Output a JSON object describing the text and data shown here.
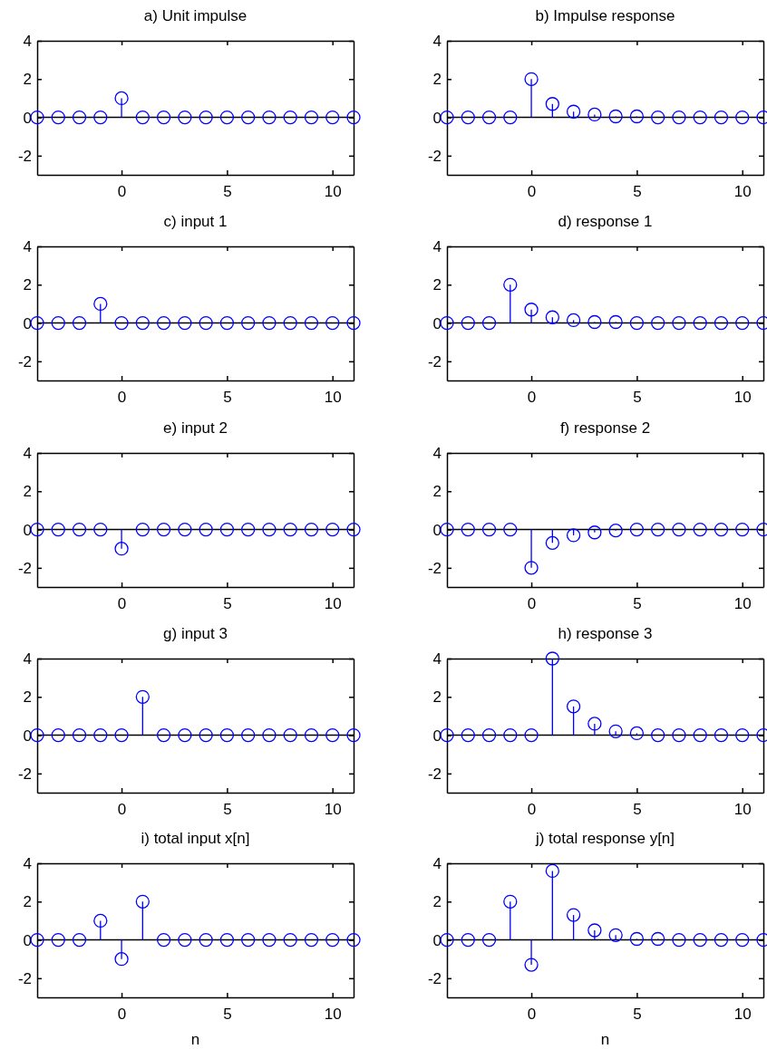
{
  "chart_data": [
    {
      "type": "lollipop",
      "title": "a) Unit impulse",
      "x": [
        -4,
        -3,
        -2,
        -1,
        0,
        1,
        2,
        3,
        4,
        5,
        6,
        7,
        8,
        9,
        10,
        11
      ],
      "series": [
        {
          "color": "#0000ff",
          "values": [
            0,
            0,
            0,
            0,
            1,
            0,
            0,
            0,
            0,
            0,
            0,
            0,
            0,
            0,
            0,
            0
          ]
        }
      ],
      "xlim": [
        -4,
        11
      ],
      "ylim": [
        -3,
        4
      ],
      "xticks": [
        0,
        5,
        10
      ],
      "yticks": [
        -2,
        0,
        2,
        4
      ],
      "marker": "circle",
      "ref_lines": [
        {
          "axis": "y",
          "value": 0,
          "color": "#000000"
        }
      ]
    },
    {
      "type": "lollipop",
      "title": "b) Impulse response",
      "x": [
        -4,
        -3,
        -2,
        -1,
        0,
        1,
        2,
        3,
        4,
        5,
        6,
        7,
        8,
        9,
        10,
        11
      ],
      "series": [
        {
          "color": "#0000ff",
          "values": [
            0,
            0,
            0,
            0,
            2,
            0.7,
            0.3,
            0.15,
            0.05,
            0.05,
            0,
            0,
            0,
            0,
            0,
            0
          ]
        }
      ],
      "xlim": [
        -4,
        11
      ],
      "ylim": [
        -3,
        4
      ],
      "xticks": [
        0,
        5,
        10
      ],
      "yticks": [
        -2,
        0,
        2,
        4
      ],
      "marker": "circle",
      "ref_lines": [
        {
          "axis": "y",
          "value": 0,
          "color": "#000000"
        }
      ]
    },
    {
      "type": "lollipop",
      "title": "c) input 1",
      "x": [
        -4,
        -3,
        -2,
        -1,
        0,
        1,
        2,
        3,
        4,
        5,
        6,
        7,
        8,
        9,
        10,
        11
      ],
      "series": [
        {
          "color": "#0000ff",
          "values": [
            0,
            0,
            0,
            1,
            0,
            0,
            0,
            0,
            0,
            0,
            0,
            0,
            0,
            0,
            0,
            0
          ]
        }
      ],
      "xlim": [
        -4,
        11
      ],
      "ylim": [
        -3,
        4
      ],
      "xticks": [
        0,
        5,
        10
      ],
      "yticks": [
        -2,
        0,
        2,
        4
      ],
      "marker": "circle",
      "ref_lines": [
        {
          "axis": "y",
          "value": 0,
          "color": "#000000"
        }
      ]
    },
    {
      "type": "lollipop",
      "title": "d) response 1",
      "x": [
        -4,
        -3,
        -2,
        -1,
        0,
        1,
        2,
        3,
        4,
        5,
        6,
        7,
        8,
        9,
        10,
        11
      ],
      "series": [
        {
          "color": "#0000ff",
          "values": [
            0,
            0,
            0,
            2,
            0.7,
            0.3,
            0.15,
            0.05,
            0.05,
            0,
            0,
            0,
            0,
            0,
            0,
            0
          ]
        }
      ],
      "xlim": [
        -4,
        11
      ],
      "ylim": [
        -3,
        4
      ],
      "xticks": [
        0,
        5,
        10
      ],
      "yticks": [
        -2,
        0,
        2,
        4
      ],
      "marker": "circle",
      "ref_lines": [
        {
          "axis": "y",
          "value": 0,
          "color": "#000000"
        }
      ]
    },
    {
      "type": "lollipop",
      "title": "e) input 2",
      "x": [
        -4,
        -3,
        -2,
        -1,
        0,
        1,
        2,
        3,
        4,
        5,
        6,
        7,
        8,
        9,
        10,
        11
      ],
      "series": [
        {
          "color": "#0000ff",
          "values": [
            0,
            0,
            0,
            0,
            -1,
            0,
            0,
            0,
            0,
            0,
            0,
            0,
            0,
            0,
            0,
            0
          ]
        }
      ],
      "xlim": [
        -4,
        11
      ],
      "ylim": [
        -3,
        4
      ],
      "xticks": [
        0,
        5,
        10
      ],
      "yticks": [
        -2,
        0,
        2,
        4
      ],
      "marker": "circle",
      "ref_lines": [
        {
          "axis": "y",
          "value": 0,
          "color": "#000000"
        }
      ]
    },
    {
      "type": "lollipop",
      "title": "f) response 2",
      "x": [
        -4,
        -3,
        -2,
        -1,
        0,
        1,
        2,
        3,
        4,
        5,
        6,
        7,
        8,
        9,
        10,
        11
      ],
      "series": [
        {
          "color": "#0000ff",
          "values": [
            0,
            0,
            0,
            0,
            -2,
            -0.7,
            -0.3,
            -0.15,
            -0.05,
            0,
            0,
            0,
            0,
            0,
            0,
            0
          ]
        }
      ],
      "xlim": [
        -4,
        11
      ],
      "ylim": [
        -3,
        4
      ],
      "xticks": [
        0,
        5,
        10
      ],
      "yticks": [
        -2,
        0,
        2,
        4
      ],
      "marker": "circle",
      "ref_lines": [
        {
          "axis": "y",
          "value": 0,
          "color": "#000000"
        }
      ]
    },
    {
      "type": "lollipop",
      "title": "g) input 3",
      "x": [
        -4,
        -3,
        -2,
        -1,
        0,
        1,
        2,
        3,
        4,
        5,
        6,
        7,
        8,
        9,
        10,
        11
      ],
      "series": [
        {
          "color": "#0000ff",
          "values": [
            0,
            0,
            0,
            0,
            0,
            2,
            0,
            0,
            0,
            0,
            0,
            0,
            0,
            0,
            0,
            0
          ]
        }
      ],
      "xlim": [
        -4,
        11
      ],
      "ylim": [
        -3,
        4
      ],
      "xticks": [
        0,
        5,
        10
      ],
      "yticks": [
        -2,
        0,
        2,
        4
      ],
      "marker": "circle",
      "ref_lines": [
        {
          "axis": "y",
          "value": 0,
          "color": "#000000"
        }
      ]
    },
    {
      "type": "lollipop",
      "title": "h) response 3",
      "x": [
        -4,
        -3,
        -2,
        -1,
        0,
        1,
        2,
        3,
        4,
        5,
        6,
        7,
        8,
        9,
        10,
        11
      ],
      "series": [
        {
          "color": "#0000ff",
          "values": [
            0,
            0,
            0,
            0,
            0,
            4,
            1.5,
            0.6,
            0.2,
            0.1,
            0,
            0,
            0,
            0,
            0,
            0
          ]
        }
      ],
      "xlim": [
        -4,
        11
      ],
      "ylim": [
        -3,
        4
      ],
      "xticks": [
        0,
        5,
        10
      ],
      "yticks": [
        -2,
        0,
        2,
        4
      ],
      "marker": "circle",
      "ref_lines": [
        {
          "axis": "y",
          "value": 0,
          "color": "#000000"
        }
      ]
    },
    {
      "type": "lollipop",
      "title": "i) total input x[n]",
      "xlabel": "n",
      "x": [
        -4,
        -3,
        -2,
        -1,
        0,
        1,
        2,
        3,
        4,
        5,
        6,
        7,
        8,
        9,
        10,
        11
      ],
      "series": [
        {
          "color": "#0000ff",
          "values": [
            0,
            0,
            0,
            1,
            -1,
            2,
            0,
            0,
            0,
            0,
            0,
            0,
            0,
            0,
            0,
            0
          ]
        }
      ],
      "xlim": [
        -4,
        11
      ],
      "ylim": [
        -3,
        4
      ],
      "xticks": [
        0,
        5,
        10
      ],
      "yticks": [
        -2,
        0,
        2,
        4
      ],
      "marker": "circle",
      "ref_lines": [
        {
          "axis": "y",
          "value": 0,
          "color": "#000000"
        }
      ]
    },
    {
      "type": "lollipop",
      "title": "j) total response y[n]",
      "xlabel": "n",
      "x": [
        -4,
        -3,
        -2,
        -1,
        0,
        1,
        2,
        3,
        4,
        5,
        6,
        7,
        8,
        9,
        10,
        11
      ],
      "series": [
        {
          "color": "#0000ff",
          "values": [
            0,
            0,
            0,
            2,
            -1.3,
            3.6,
            1.3,
            0.5,
            0.25,
            0.05,
            0.05,
            0,
            0,
            0,
            0,
            0
          ]
        }
      ],
      "xlim": [
        -4,
        11
      ],
      "ylim": [
        -3,
        4
      ],
      "xticks": [
        0,
        5,
        10
      ],
      "yticks": [
        -2,
        0,
        2,
        4
      ],
      "marker": "circle",
      "ref_lines": [
        {
          "axis": "y",
          "value": 0,
          "color": "#000000"
        }
      ]
    }
  ]
}
